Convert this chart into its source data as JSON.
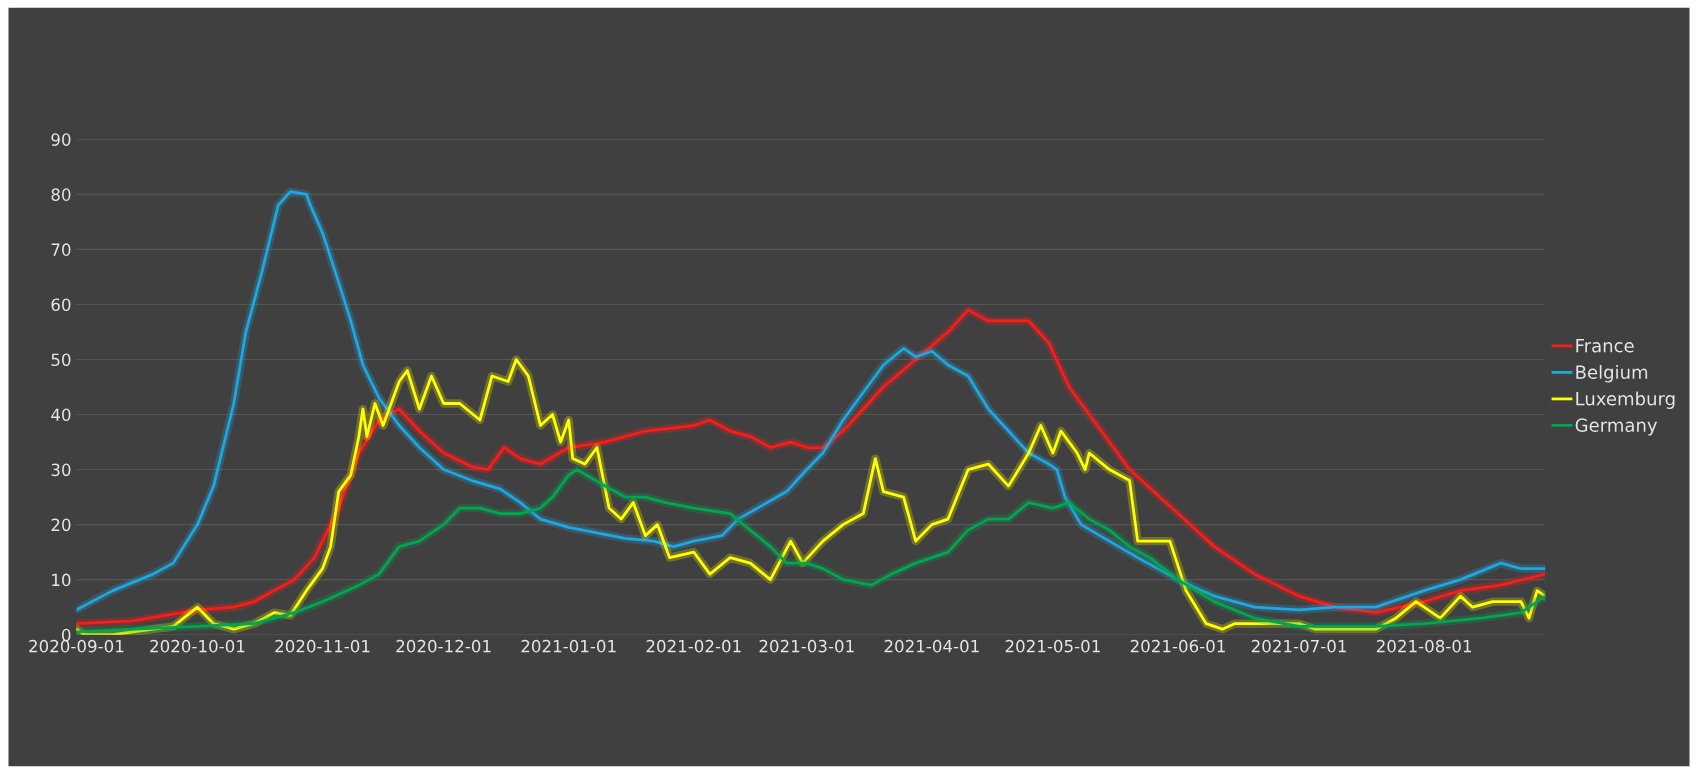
{
  "chart_data": {
    "type": "line",
    "xlim": [
      "2020-09-01",
      "2021-08-31"
    ],
    "xticks": [
      {
        "value": "2020-09-01",
        "label": "2020-09-01"
      },
      {
        "value": "2020-10-01",
        "label": "2020-10-01"
      },
      {
        "value": "2020-11-01",
        "label": "2020-11-01"
      },
      {
        "value": "2020-12-01",
        "label": "2020-12-01"
      },
      {
        "value": "2021-01-01",
        "label": "2021-01-01"
      },
      {
        "value": "2021-02-01",
        "label": "2021-02-01"
      },
      {
        "value": "2021-03-01",
        "label": "2021-03-01"
      },
      {
        "value": "2021-04-01",
        "label": "2021-04-01"
      },
      {
        "value": "2021-05-01",
        "label": "2021-05-01"
      },
      {
        "value": "2021-06-01",
        "label": "2021-06-01"
      },
      {
        "value": "2021-07-01",
        "label": "2021-07-01"
      },
      {
        "value": "2021-08-01",
        "label": "2021-08-01"
      }
    ],
    "ylim": [
      0,
      90
    ],
    "yticks": [
      0,
      10,
      20,
      30,
      40,
      50,
      60,
      70,
      80,
      90
    ],
    "grid": "y",
    "legend": "right",
    "marker": "none",
    "line_style": "solid",
    "series": [
      {
        "name": "France",
        "color": "#ff1a1a",
        "x": [
          "2020-09-01",
          "2020-09-15",
          "2020-10-01",
          "2020-10-10",
          "2020-10-15",
          "2020-10-20",
          "2020-10-25",
          "2020-10-30",
          "2020-11-05",
          "2020-11-10",
          "2020-11-15",
          "2020-11-20",
          "2020-11-25",
          "2020-12-01",
          "2020-12-08",
          "2020-12-12",
          "2020-12-16",
          "2020-12-20",
          "2020-12-25",
          "2021-01-01",
          "2021-01-10",
          "2021-01-20",
          "2021-02-01",
          "2021-02-05",
          "2021-02-10",
          "2021-02-15",
          "2021-02-20",
          "2021-02-25",
          "2021-03-01",
          "2021-03-05",
          "2021-03-10",
          "2021-03-20",
          "2021-03-28",
          "2021-04-05",
          "2021-04-10",
          "2021-04-15",
          "2021-04-20",
          "2021-04-25",
          "2021-04-30",
          "2021-05-05",
          "2021-05-10",
          "2021-05-20",
          "2021-06-01",
          "2021-06-10",
          "2021-06-20",
          "2021-07-01",
          "2021-07-10",
          "2021-07-20",
          "2021-08-01",
          "2021-08-10",
          "2021-08-20",
          "2021-08-31"
        ],
        "values": [
          2,
          2.5,
          4.5,
          5,
          6,
          8,
          10,
          14,
          23,
          33,
          39,
          41,
          37,
          33,
          30.5,
          30,
          34,
          32,
          31,
          34,
          35,
          37,
          38,
          39,
          37,
          36,
          34,
          35,
          34,
          34,
          37,
          45,
          50,
          55,
          59,
          57,
          57,
          57,
          53,
          45,
          40,
          30,
          22,
          16,
          11,
          7,
          5,
          4,
          6,
          8,
          9,
          11
        ]
      },
      {
        "name": "Belgium",
        "color": "#1ea7e1",
        "x": [
          "2020-09-01",
          "2020-09-10",
          "2020-09-20",
          "2020-09-25",
          "2020-10-01",
          "2020-10-05",
          "2020-10-10",
          "2020-10-13",
          "2020-10-17",
          "2020-10-21",
          "2020-10-24",
          "2020-10-28",
          "2020-10-29",
          "2020-11-01",
          "2020-11-05",
          "2020-11-08",
          "2020-11-11",
          "2020-11-15",
          "2020-11-20",
          "2020-11-25",
          "2020-12-01",
          "2020-12-08",
          "2020-12-15",
          "2020-12-20",
          "2020-12-25",
          "2021-01-01",
          "2021-01-08",
          "2021-01-15",
          "2021-01-22",
          "2021-01-27",
          "2021-02-01",
          "2021-02-08",
          "2021-02-12",
          "2021-02-18",
          "2021-02-24",
          "2021-03-01",
          "2021-03-05",
          "2021-03-10",
          "2021-03-15",
          "2021-03-20",
          "2021-03-25",
          "2021-03-28",
          "2021-04-01",
          "2021-04-05",
          "2021-04-10",
          "2021-04-15",
          "2021-04-20",
          "2021-04-25",
          "2021-04-30",
          "2021-05-02",
          "2021-05-04",
          "2021-05-08",
          "2021-05-15",
          "2021-05-22",
          "2021-06-01",
          "2021-06-10",
          "2021-06-20",
          "2021-07-01",
          "2021-07-10",
          "2021-07-20",
          "2021-08-01",
          "2021-08-10",
          "2021-08-20",
          "2021-08-25",
          "2021-08-31"
        ],
        "values": [
          4.5,
          8,
          11,
          13,
          20,
          27,
          42,
          55,
          66,
          78,
          80.5,
          80,
          78,
          73,
          64,
          57,
          49,
          43,
          38,
          34,
          30,
          28,
          26.5,
          24,
          21,
          19.5,
          18.5,
          17.5,
          17,
          16,
          17,
          18,
          21,
          23.5,
          26,
          30,
          33,
          39,
          44,
          49,
          52,
          50.5,
          51.5,
          49,
          47,
          41,
          37,
          33,
          31,
          30,
          25,
          20,
          17,
          14,
          10,
          7,
          5,
          4.5,
          5,
          5,
          8,
          10,
          13,
          12,
          12
        ]
      },
      {
        "name": "Luxemburg",
        "color": "#ffff00",
        "x": [
          "2020-09-01",
          "2020-09-03",
          "2020-09-10",
          "2020-09-20",
          "2020-09-25",
          "2020-10-01",
          "2020-10-05",
          "2020-10-10",
          "2020-10-15",
          "2020-10-20",
          "2020-10-24",
          "2020-10-28",
          "2020-11-01",
          "2020-11-03",
          "2020-11-05",
          "2020-11-08",
          "2020-11-10",
          "2020-11-11",
          "2020-11-12",
          "2020-11-14",
          "2020-11-16",
          "2020-11-20",
          "2020-11-22",
          "2020-11-25",
          "2020-11-28",
          "2020-12-01",
          "2020-12-05",
          "2020-12-10",
          "2020-12-13",
          "2020-12-17",
          "2020-12-19",
          "2020-12-22",
          "2020-12-25",
          "2020-12-28",
          "2020-12-30",
          "2021-01-01",
          "2021-01-02",
          "2021-01-05",
          "2021-01-08",
          "2021-01-11",
          "2021-01-14",
          "2021-01-17",
          "2021-01-20",
          "2021-01-23",
          "2021-01-26",
          "2021-02-01",
          "2021-02-05",
          "2021-02-10",
          "2021-02-15",
          "2021-02-20",
          "2021-02-25",
          "2021-02-28",
          "2021-03-05",
          "2021-03-10",
          "2021-03-15",
          "2021-03-18",
          "2021-03-20",
          "2021-03-25",
          "2021-03-28",
          "2021-04-01",
          "2021-04-05",
          "2021-04-10",
          "2021-04-15",
          "2021-04-20",
          "2021-04-25",
          "2021-04-28",
          "2021-05-01",
          "2021-05-03",
          "2021-05-07",
          "2021-05-09",
          "2021-05-10",
          "2021-05-15",
          "2021-05-20",
          "2021-05-22",
          "2021-05-30",
          "2021-06-03",
          "2021-06-08",
          "2021-06-12",
          "2021-06-15",
          "2021-07-01",
          "2021-07-05",
          "2021-07-20",
          "2021-07-25",
          "2021-07-30",
          "2021-08-05",
          "2021-08-10",
          "2021-08-13",
          "2021-08-18",
          "2021-08-25",
          "2021-08-27",
          "2021-08-29",
          "2021-08-31"
        ],
        "values": [
          1,
          0,
          0,
          1,
          1.5,
          5,
          2,
          1,
          2,
          4,
          3.5,
          8,
          12,
          16,
          26,
          29,
          36,
          41,
          36,
          42,
          38,
          46,
          48,
          41,
          47,
          42,
          42,
          39,
          47,
          46,
          50,
          47,
          38,
          40,
          35,
          39,
          32,
          31,
          34,
          23,
          21,
          24,
          18,
          20,
          14,
          15,
          11,
          14,
          13,
          10,
          17,
          13,
          17,
          20,
          22,
          32,
          26,
          25,
          17,
          20,
          21,
          30,
          31,
          27,
          33,
          38,
          33,
          37,
          33,
          30,
          33,
          30,
          28,
          17,
          17,
          8,
          2,
          1,
          2,
          2,
          1,
          1,
          3,
          6,
          3,
          7,
          5,
          6,
          6,
          3,
          8,
          7
        ]
      },
      {
        "name": "Germany",
        "color": "#00a651",
        "x": [
          "2020-09-01",
          "2020-09-15",
          "2020-10-01",
          "2020-10-15",
          "2020-10-25",
          "2020-11-01",
          "2020-11-10",
          "2020-11-15",
          "2020-11-20",
          "2020-11-25",
          "2020-12-01",
          "2020-12-05",
          "2020-12-10",
          "2020-12-15",
          "2020-12-20",
          "2020-12-25",
          "2020-12-28",
          "2021-01-01",
          "2021-01-03",
          "2021-01-10",
          "2021-01-15",
          "2021-01-20",
          "2021-01-25",
          "2021-02-01",
          "2021-02-10",
          "2021-02-15",
          "2021-02-20",
          "2021-02-24",
          "2021-03-01",
          "2021-03-05",
          "2021-03-10",
          "2021-03-17",
          "2021-03-22",
          "2021-03-28",
          "2021-04-05",
          "2021-04-10",
          "2021-04-15",
          "2021-04-20",
          "2021-04-25",
          "2021-05-01",
          "2021-05-05",
          "2021-05-10",
          "2021-05-15",
          "2021-05-20",
          "2021-05-25",
          "2021-06-01",
          "2021-06-10",
          "2021-06-20",
          "2021-07-01",
          "2021-07-20",
          "2021-08-01",
          "2021-08-15",
          "2021-08-25",
          "2021-08-31"
        ],
        "values": [
          0.5,
          1,
          1.5,
          2,
          4,
          6,
          9,
          11,
          16,
          17,
          20,
          23,
          23,
          22,
          22,
          23,
          25,
          29,
          30,
          27,
          25,
          25,
          24,
          23,
          22,
          19,
          16,
          13,
          13,
          12,
          10,
          9,
          11,
          13,
          15,
          19,
          21,
          21,
          24,
          23,
          24,
          21,
          19,
          16,
          14,
          10,
          6,
          3,
          1.5,
          1.5,
          2,
          3,
          4,
          7
        ]
      }
    ]
  }
}
